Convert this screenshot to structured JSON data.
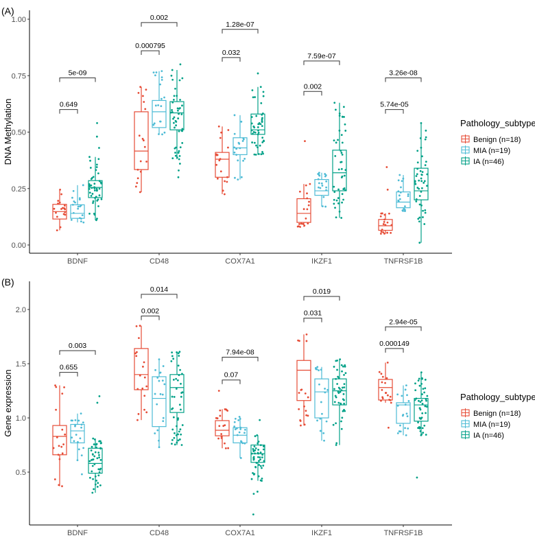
{
  "chart_data": [
    {
      "type": "box",
      "panel_label": "(A)",
      "title": "",
      "xlabel": "",
      "ylabel": "DNA Methylation",
      "ylim": [
        -0.03,
        1.02
      ],
      "yticks": [
        0.0,
        0.25,
        0.5,
        0.75,
        1.0
      ],
      "ytick_labels": [
        "0.00",
        "0.25",
        "0.50",
        "0.75",
        "1.00"
      ],
      "grid": false,
      "categories": [
        "BDNF",
        "CD48",
        "COX7A1",
        "IKZF1",
        "TNFRSF1B"
      ],
      "series": [
        {
          "name": "Benign (n=18)",
          "color": "#E64B35",
          "boxes": [
            {
              "q1": 0.115,
              "median": 0.148,
              "q3": 0.18,
              "lower": 0.065,
              "upper": 0.245
            },
            {
              "q1": 0.334,
              "median": 0.416,
              "q3": 0.59,
              "lower": 0.234,
              "upper": 0.7
            },
            {
              "q1": 0.3,
              "median": 0.38,
              "q3": 0.41,
              "lower": 0.225,
              "upper": 0.525
            },
            {
              "q1": 0.1,
              "median": 0.14,
              "q3": 0.205,
              "lower": 0.08,
              "upper": 0.27
            },
            {
              "q1": 0.065,
              "median": 0.085,
              "q3": 0.113,
              "lower": 0.05,
              "upper": 0.14
            }
          ],
          "outliers": [
            [],
            [],
            [],
            [
              0.46
            ],
            [
              0.345,
              0.245
            ]
          ]
        },
        {
          "name": "MIA (n=19)",
          "color": "#4DBBD5",
          "boxes": [
            {
              "q1": 0.118,
              "median": 0.14,
              "q3": 0.178,
              "lower": 0.1,
              "upper": 0.265
            },
            {
              "q1": 0.52,
              "median": 0.59,
              "q3": 0.64,
              "lower": 0.49,
              "upper": 0.77
            },
            {
              "q1": 0.4,
              "median": 0.43,
              "q3": 0.475,
              "lower": 0.29,
              "upper": 0.575
            },
            {
              "q1": 0.22,
              "median": 0.24,
              "q3": 0.29,
              "lower": 0.17,
              "upper": 0.32
            },
            {
              "q1": 0.165,
              "median": 0.19,
              "q3": 0.235,
              "lower": 0.15,
              "upper": 0.31
            }
          ],
          "outliers": [
            [],
            [],
            [],
            [],
            []
          ]
        },
        {
          "name": "IA (n=46)",
          "color": "#00A087",
          "boxes": [
            {
              "q1": 0.21,
              "median": 0.255,
              "q3": 0.285,
              "lower": 0.11,
              "upper": 0.39
            },
            {
              "q1": 0.51,
              "median": 0.585,
              "q3": 0.635,
              "lower": 0.38,
              "upper": 0.775
            },
            {
              "q1": 0.49,
              "median": 0.51,
              "q3": 0.58,
              "lower": 0.4,
              "upper": 0.7
            },
            {
              "q1": 0.24,
              "median": 0.32,
              "q3": 0.42,
              "lower": 0.12,
              "upper": 0.63
            },
            {
              "q1": 0.2,
              "median": 0.24,
              "q3": 0.34,
              "lower": 0.01,
              "upper": 0.54
            }
          ],
          "outliers": [
            [
              0.43,
              0.48,
              0.54
            ],
            [
              0.3,
              0.33,
              0.36,
              0.8
            ],
            [
              0.76
            ],
            [],
            []
          ]
        }
      ],
      "comparisons": [
        {
          "category": "BDNF",
          "groups": [
            "Benign",
            "MIA"
          ],
          "label": "0.649",
          "y": 0.6
        },
        {
          "category": "BDNF",
          "groups": [
            "Benign",
            "IA"
          ],
          "label": "5e-09",
          "y": 0.74
        },
        {
          "category": "CD48",
          "groups": [
            "Benign",
            "MIA"
          ],
          "label": "0.000795",
          "y": 0.86
        },
        {
          "category": "CD48",
          "groups": [
            "Benign",
            "IA"
          ],
          "label": "0.002",
          "y": 0.985
        },
        {
          "category": "COX7A1",
          "groups": [
            "Benign",
            "MIA"
          ],
          "label": "0.032",
          "y": 0.83
        },
        {
          "category": "COX7A1",
          "groups": [
            "Benign",
            "IA"
          ],
          "label": "1.28e-07",
          "y": 0.955
        },
        {
          "category": "IKZF1",
          "groups": [
            "Benign",
            "MIA"
          ],
          "label": "0.002",
          "y": 0.68
        },
        {
          "category": "IKZF1",
          "groups": [
            "Benign",
            "IA"
          ],
          "label": "7.59e-07",
          "y": 0.815
        },
        {
          "category": "TNFRSF1B",
          "groups": [
            "Benign",
            "MIA"
          ],
          "label": "5.74e-05",
          "y": 0.6
        },
        {
          "category": "TNFRSF1B",
          "groups": [
            "Benign",
            "IA"
          ],
          "label": "3.26e-08",
          "y": 0.74
        }
      ],
      "legend": {
        "title": "Pathology_subtype",
        "position": "right",
        "entries": [
          "Benign (n=18)",
          "MIA (n=19)",
          "IA (n=46)"
        ]
      }
    },
    {
      "type": "box",
      "panel_label": "(B)",
      "title": "",
      "xlabel": "",
      "ylabel": "Gene expression",
      "ylim": [
        0.05,
        2.25
      ],
      "yticks": [
        0.5,
        1.0,
        1.5,
        2.0
      ],
      "ytick_labels": [
        "0.5",
        "1.0",
        "1.5",
        "2.0"
      ],
      "grid": false,
      "categories": [
        "BDNF",
        "CD48",
        "COX7A1",
        "IKZF1",
        "TNFRSF1B"
      ],
      "series": [
        {
          "name": "Benign (n=18)",
          "color": "#E64B35",
          "boxes": [
            {
              "q1": 0.66,
              "median": 0.83,
              "q3": 0.93,
              "lower": 0.37,
              "upper": 1.3
            },
            {
              "q1": 1.26,
              "median": 1.4,
              "q3": 1.64,
              "lower": 0.98,
              "upper": 1.85
            },
            {
              "q1": 0.835,
              "median": 0.886,
              "q3": 0.975,
              "lower": 0.72,
              "upper": 1.08
            },
            {
              "q1": 1.16,
              "median": 1.44,
              "q3": 1.53,
              "lower": 0.93,
              "upper": 1.77
            },
            {
              "q1": 1.165,
              "median": 1.28,
              "q3": 1.355,
              "lower": 1.14,
              "upper": 1.51
            }
          ],
          "outliers": [
            [],
            [],
            [
              1.25
            ],
            [],
            [
              0.91
            ]
          ]
        },
        {
          "name": "MIA (n=19)",
          "color": "#4DBBD5",
          "boxes": [
            {
              "q1": 0.77,
              "median": 0.88,
              "q3": 0.94,
              "lower": 0.61,
              "upper": 1.04
            },
            {
              "q1": 0.92,
              "median": 1.18,
              "q3": 1.38,
              "lower": 0.73,
              "upper": 1.54
            },
            {
              "q1": 0.77,
              "median": 0.84,
              "q3": 0.91,
              "lower": 0.63,
              "upper": 1.01
            },
            {
              "q1": 1.0,
              "median": 1.24,
              "q3": 1.36,
              "lower": 0.79,
              "upper": 1.47
            },
            {
              "q1": 0.95,
              "median": 1.12,
              "q3": 1.14,
              "lower": 0.84,
              "upper": 1.3
            }
          ],
          "outliers": [
            [
              0.48
            ],
            [],
            [],
            [],
            []
          ]
        },
        {
          "name": "IA (n=46)",
          "color": "#00A087",
          "boxes": [
            {
              "q1": 0.49,
              "median": 0.58,
              "q3": 0.72,
              "lower": 0.31,
              "upper": 0.81
            },
            {
              "q1": 1.05,
              "median": 1.28,
              "q3": 1.4,
              "lower": 0.75,
              "upper": 1.61
            },
            {
              "q1": 0.59,
              "median": 0.67,
              "q3": 0.75,
              "lower": 0.42,
              "upper": 0.84
            },
            {
              "q1": 1.12,
              "median": 1.25,
              "q3": 1.36,
              "lower": 0.75,
              "upper": 1.54
            },
            {
              "q1": 0.97,
              "median": 1.12,
              "q3": 1.18,
              "lower": 0.84,
              "upper": 1.42
            }
          ],
          "outliers": [
            [
              1.14,
              1.2
            ],
            [],
            [
              0.98,
              0.32,
              0.3,
              0.11
            ],
            [],
            [
              0.45
            ]
          ]
        }
      ],
      "comparisons": [
        {
          "category": "BDNF",
          "groups": [
            "Benign",
            "MIA"
          ],
          "label": "0.655",
          "y": 1.42
        },
        {
          "category": "BDNF",
          "groups": [
            "Benign",
            "IA"
          ],
          "label": "0.003",
          "y": 1.62
        },
        {
          "category": "CD48",
          "groups": [
            "Benign",
            "MIA"
          ],
          "label": "0.002",
          "y": 1.94
        },
        {
          "category": "CD48",
          "groups": [
            "Benign",
            "IA"
          ],
          "label": "0.014",
          "y": 2.14
        },
        {
          "category": "COX7A1",
          "groups": [
            "Benign",
            "MIA"
          ],
          "label": "0.07",
          "y": 1.35
        },
        {
          "category": "COX7A1",
          "groups": [
            "Benign",
            "IA"
          ],
          "label": "7.94e-08",
          "y": 1.56
        },
        {
          "category": "IKZF1",
          "groups": [
            "Benign",
            "MIA"
          ],
          "label": "0.031",
          "y": 1.92
        },
        {
          "category": "IKZF1",
          "groups": [
            "Benign",
            "IA"
          ],
          "label": "0.019",
          "y": 2.12
        },
        {
          "category": "TNFRSF1B",
          "groups": [
            "Benign",
            "MIA"
          ],
          "label": "0.000149",
          "y": 1.64
        },
        {
          "category": "TNFRSF1B",
          "groups": [
            "Benign",
            "IA"
          ],
          "label": "2.94e-05",
          "y": 1.84
        }
      ],
      "legend": {
        "title": "Pathology_subtype",
        "position": "right",
        "entries": [
          "Benign (n=18)",
          "MIA (n=19)",
          "IA (n=46)"
        ]
      }
    }
  ]
}
